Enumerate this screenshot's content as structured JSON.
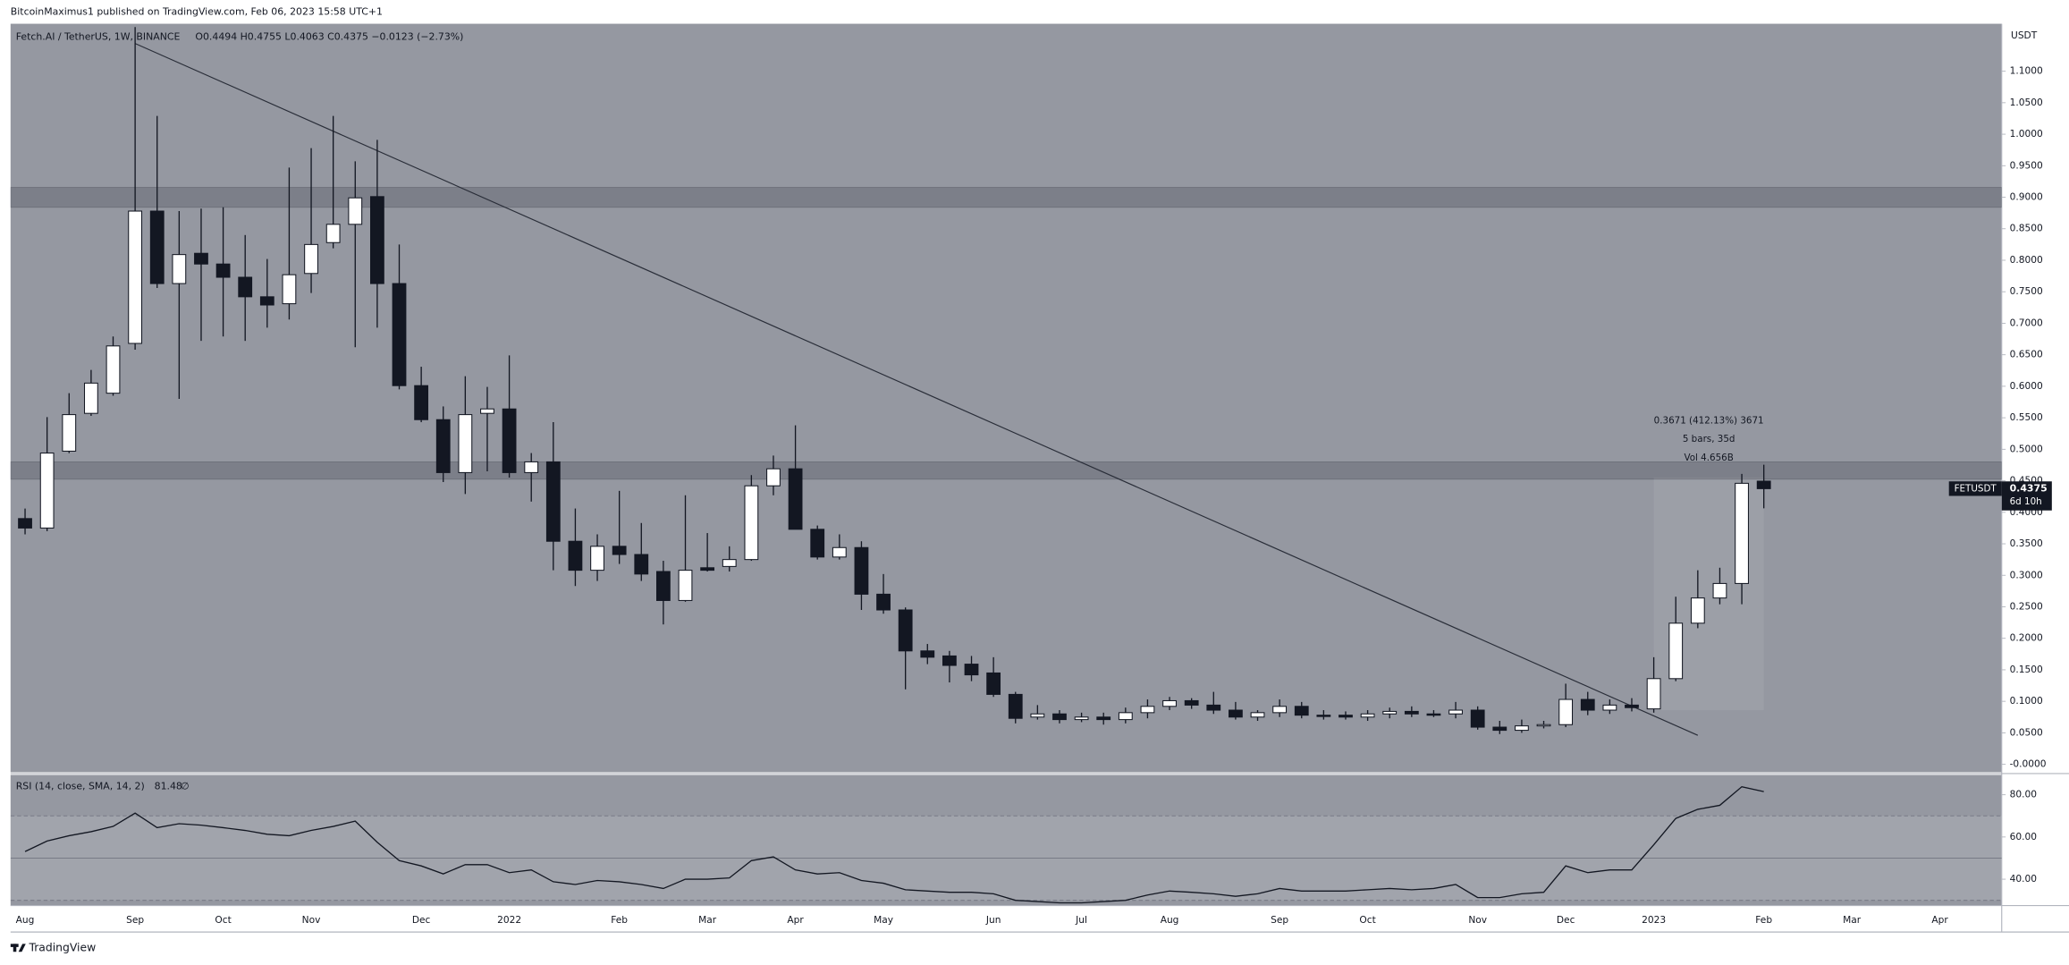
{
  "header": {
    "published": "BitcoinMaximus1 published on TradingView.com, Feb 06, 2023 15:58 UTC+1",
    "footer": "TradingView"
  },
  "chart_data": [
    {
      "type": "candlestick",
      "title": "Fetch.AI / TetherUS, 1W, BINANCE",
      "ohlc_legend": "O0.4494  H0.4755  L0.4063  C0.4375  −0.0123 (−2.73%)",
      "axis_label": "USDT",
      "symbol": "FETUSDT",
      "countdown": "6d 10h",
      "last_price": {
        "value": 0.4375,
        "label": "0.4375"
      },
      "annotations": [
        "0.3671 (412.13%) 3671",
        "5 bars, 35d",
        "Vol 4.656B"
      ],
      "up_color": "#ffffff",
      "down_color": "#131722",
      "categories": [
        "Aug",
        null,
        null,
        null,
        null,
        "Sep",
        null,
        null,
        null,
        "Oct",
        null,
        null,
        null,
        "Nov",
        null,
        null,
        null,
        null,
        "Dec",
        null,
        null,
        null,
        "2022",
        null,
        null,
        null,
        null,
        "Feb",
        null,
        null,
        null,
        "Mar",
        null,
        null,
        null,
        "Apr",
        null,
        null,
        null,
        "May",
        null,
        null,
        null,
        null,
        "Jun",
        null,
        null,
        null,
        "Jul",
        null,
        null,
        null,
        "Aug",
        null,
        null,
        null,
        null,
        "Sep",
        null,
        null,
        null,
        "Oct",
        null,
        null,
        null,
        null,
        "Nov",
        null,
        null,
        null,
        "Dec",
        null,
        null,
        null,
        "2023",
        null,
        null,
        null,
        null,
        "Feb",
        null,
        null,
        null,
        "Mar",
        null,
        null,
        null,
        "Apr"
      ],
      "open": [
        0.39,
        0.375,
        0.497,
        0.557,
        0.589,
        0.668,
        0.878,
        0.763,
        0.811,
        0.794,
        0.773,
        0.742,
        0.731,
        0.779,
        0.828,
        0.857,
        0.901,
        0.763,
        0.601,
        0.547,
        0.463,
        0.557,
        0.564,
        0.463,
        0.48,
        0.354,
        0.308,
        0.346,
        0.333,
        0.306,
        0.26,
        0.312,
        0.314,
        0.325,
        0.442,
        0.469,
        0.373,
        0.329,
        0.344,
        0.27,
        0.245,
        0.18,
        0.172,
        0.159,
        0.145,
        0.111,
        0.075,
        0.08,
        0.071,
        0.075,
        0.071,
        0.082,
        0.092,
        0.101,
        0.094,
        0.086,
        0.075,
        0.082,
        0.092,
        0.078,
        0.078,
        0.075,
        0.08,
        0.084,
        0.08,
        0.08,
        0.086,
        0.059,
        0.054,
        0.061,
        0.063,
        0.103,
        0.086,
        0.094,
        0.088,
        0.136,
        0.224,
        0.264,
        0.287,
        0.4494,
        null,
        null,
        null,
        null,
        null,
        null,
        null,
        null
      ],
      "high": [
        0.406,
        0.551,
        0.589,
        0.626,
        0.679,
        1.17,
        1.029,
        0.878,
        0.882,
        0.884,
        0.84,
        0.802,
        0.947,
        0.978,
        1.029,
        0.957,
        0.991,
        0.825,
        0.631,
        0.568,
        0.616,
        0.599,
        0.649,
        0.494,
        0.543,
        0.406,
        0.365,
        0.434,
        0.383,
        0.323,
        0.427,
        0.367,
        0.346,
        0.459,
        0.49,
        0.538,
        0.379,
        0.365,
        0.354,
        0.302,
        0.249,
        0.191,
        0.18,
        0.172,
        0.17,
        0.115,
        0.094,
        0.086,
        0.082,
        0.082,
        0.09,
        0.103,
        0.107,
        0.105,
        0.115,
        0.099,
        0.086,
        0.103,
        0.099,
        0.086,
        0.084,
        0.086,
        0.09,
        0.092,
        0.086,
        0.099,
        0.092,
        0.069,
        0.071,
        0.069,
        0.128,
        0.115,
        0.103,
        0.105,
        0.17,
        0.266,
        0.308,
        0.312,
        0.461,
        0.4755,
        null,
        null,
        null,
        null,
        null,
        null,
        null,
        null
      ],
      "low": [
        0.365,
        0.37,
        0.494,
        0.553,
        0.585,
        0.658,
        0.756,
        0.58,
        0.672,
        0.679,
        0.672,
        0.693,
        0.706,
        0.748,
        0.819,
        0.662,
        0.693,
        0.595,
        0.543,
        0.448,
        0.429,
        0.465,
        0.455,
        0.417,
        0.308,
        0.283,
        0.291,
        0.318,
        0.291,
        0.222,
        0.258,
        0.306,
        0.306,
        0.323,
        0.427,
        0.373,
        0.325,
        0.325,
        0.245,
        0.239,
        0.119,
        0.159,
        0.13,
        0.132,
        0.107,
        0.065,
        0.071,
        0.065,
        0.067,
        0.063,
        0.065,
        0.073,
        0.086,
        0.088,
        0.08,
        0.071,
        0.069,
        0.075,
        0.073,
        0.071,
        0.071,
        0.069,
        0.073,
        0.075,
        0.075,
        0.073,
        0.055,
        0.048,
        0.05,
        0.057,
        0.059,
        0.078,
        0.08,
        0.084,
        0.082,
        0.132,
        0.216,
        0.254,
        0.254,
        0.4063,
        null,
        null,
        null,
        null,
        null,
        null,
        null,
        null
      ],
      "close": [
        0.375,
        0.494,
        0.555,
        0.605,
        0.664,
        0.878,
        0.763,
        0.809,
        0.794,
        0.773,
        0.742,
        0.729,
        0.777,
        0.825,
        0.857,
        0.899,
        0.763,
        0.601,
        0.547,
        0.463,
        0.555,
        0.564,
        0.463,
        0.48,
        0.354,
        0.308,
        0.346,
        0.333,
        0.302,
        0.26,
        0.308,
        0.308,
        0.325,
        0.442,
        0.469,
        0.373,
        0.329,
        0.344,
        0.27,
        0.245,
        0.18,
        0.17,
        0.157,
        0.142,
        0.111,
        0.073,
        0.08,
        0.071,
        0.075,
        0.071,
        0.082,
        0.092,
        0.101,
        0.094,
        0.086,
        0.075,
        0.082,
        0.092,
        0.078,
        0.077,
        0.075,
        0.08,
        0.084,
        0.08,
        0.078,
        0.086,
        0.059,
        0.054,
        0.061,
        0.063,
        0.103,
        0.086,
        0.094,
        0.09,
        0.136,
        0.224,
        0.264,
        0.287,
        0.446,
        0.4375,
        null,
        null,
        null,
        null,
        null,
        null,
        null,
        null
      ],
      "zones": [
        [
          0.884,
          0.9156
        ],
        [
          0.4525,
          0.48
        ]
      ],
      "trendline": {
        "start": [
          5,
          1.144
        ],
        "end": [
          76,
          0.046
        ]
      },
      "measure_box": {
        "start": 74,
        "end": 79,
        "low": 0.086,
        "high": 0.455
      },
      "ylim": [
        -0.0126,
        1.1753
      ],
      "yticks": [
        {
          "value": 0,
          "label": "-0.0000"
        },
        {
          "value": 0.05,
          "label": "0.0500"
        },
        {
          "value": 0.1,
          "label": "0.1000"
        },
        {
          "value": 0.15,
          "label": "0.1500"
        },
        {
          "value": 0.2,
          "label": "0.2000"
        },
        {
          "value": 0.25,
          "label": "0.2500"
        },
        {
          "value": 0.3,
          "label": "0.3000"
        },
        {
          "value": 0.35,
          "label": "0.3500"
        },
        {
          "value": 0.4,
          "label": "0.4000"
        },
        {
          "value": 0.45,
          "label": "0.4500"
        },
        {
          "value": 0.5,
          "label": "0.5000"
        },
        {
          "value": 0.55,
          "label": "0.5500"
        },
        {
          "value": 0.6,
          "label": "0.6000"
        },
        {
          "value": 0.65,
          "label": "0.6500"
        },
        {
          "value": 0.7,
          "label": "0.7000"
        },
        {
          "value": 0.75,
          "label": "0.7500"
        },
        {
          "value": 0.8,
          "label": "0.8000"
        },
        {
          "value": 0.85,
          "label": "0.8500"
        },
        {
          "value": 0.9,
          "label": "0.9000"
        },
        {
          "value": 0.95,
          "label": "0.9500"
        },
        {
          "value": 1.0,
          "label": "1.0000"
        },
        {
          "value": 1.05,
          "label": "1.0500"
        },
        {
          "value": 1.1,
          "label": "1.1000"
        }
      ]
    },
    {
      "type": "line",
      "title": "RSI (14, close, SMA, 14, 2)",
      "last_value_label": "81.48",
      "flag": "∅",
      "color": "#131722",
      "values": [
        53.1,
        58.1,
        60.6,
        62.5,
        65.0,
        71.3,
        64.4,
        66.3,
        65.6,
        64.4,
        63.1,
        61.3,
        60.6,
        63.1,
        65.0,
        67.5,
        57.5,
        48.8,
        46.3,
        42.5,
        46.9,
        46.9,
        43.1,
        44.4,
        38.8,
        37.5,
        39.4,
        38.8,
        37.5,
        35.6,
        40.0,
        40.0,
        40.6,
        48.8,
        50.6,
        44.4,
        42.5,
        43.1,
        39.4,
        38.1,
        35.0,
        34.4,
        33.8,
        33.8,
        33.1,
        30.0,
        29.4,
        28.8,
        28.8,
        29.4,
        30.0,
        32.5,
        34.4,
        33.8,
        33.1,
        31.9,
        33.1,
        35.6,
        34.4,
        34.4,
        34.4,
        35.0,
        35.6,
        35.0,
        35.6,
        37.5,
        31.3,
        31.3,
        33.1,
        33.8,
        46.3,
        43.1,
        44.4,
        44.4,
        56.3,
        68.8,
        73.1,
        75.0,
        83.8,
        81.48,
        null,
        null,
        null,
        null,
        null,
        null,
        null,
        null
      ],
      "levels": [
        70,
        50,
        30
      ],
      "ylim": [
        27.5,
        89.4
      ],
      "yticks": [
        {
          "value": 80,
          "label": "80.00"
        },
        {
          "value": 60,
          "label": "60.00"
        },
        {
          "value": 40,
          "label": "40.00"
        }
      ]
    }
  ]
}
